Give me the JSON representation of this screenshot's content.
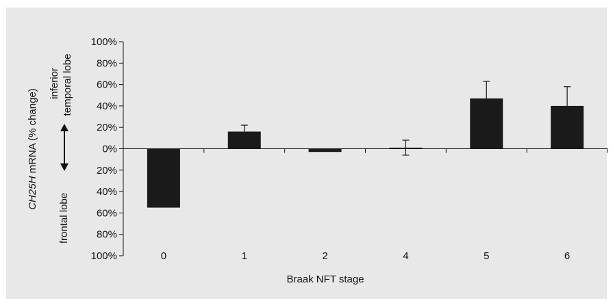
{
  "chart_data": {
    "type": "bar",
    "categories": [
      "0",
      "1",
      "2",
      "4",
      "5",
      "6"
    ],
    "values": [
      -55,
      16,
      -3,
      1,
      47,
      40
    ],
    "error_up": [
      0,
      6,
      0,
      7,
      16,
      18
    ],
    "error_down": [
      0,
      0,
      0,
      7,
      0,
      0
    ],
    "xlabel": "Braak NFT stage",
    "ylabel_italic": "CH25H",
    "ylabel_rest": " mRNA (% change)",
    "upper_label": [
      "inferior",
      "temporal lobe"
    ],
    "lower_label": "frontal lobe",
    "yticks": [
      100,
      80,
      60,
      40,
      20,
      0,
      20,
      40,
      60,
      80,
      100
    ],
    "ylim": [
      -100,
      100
    ],
    "bar_color": "#1a1a1a",
    "background_color": "#e8e8e8",
    "grid": false
  }
}
